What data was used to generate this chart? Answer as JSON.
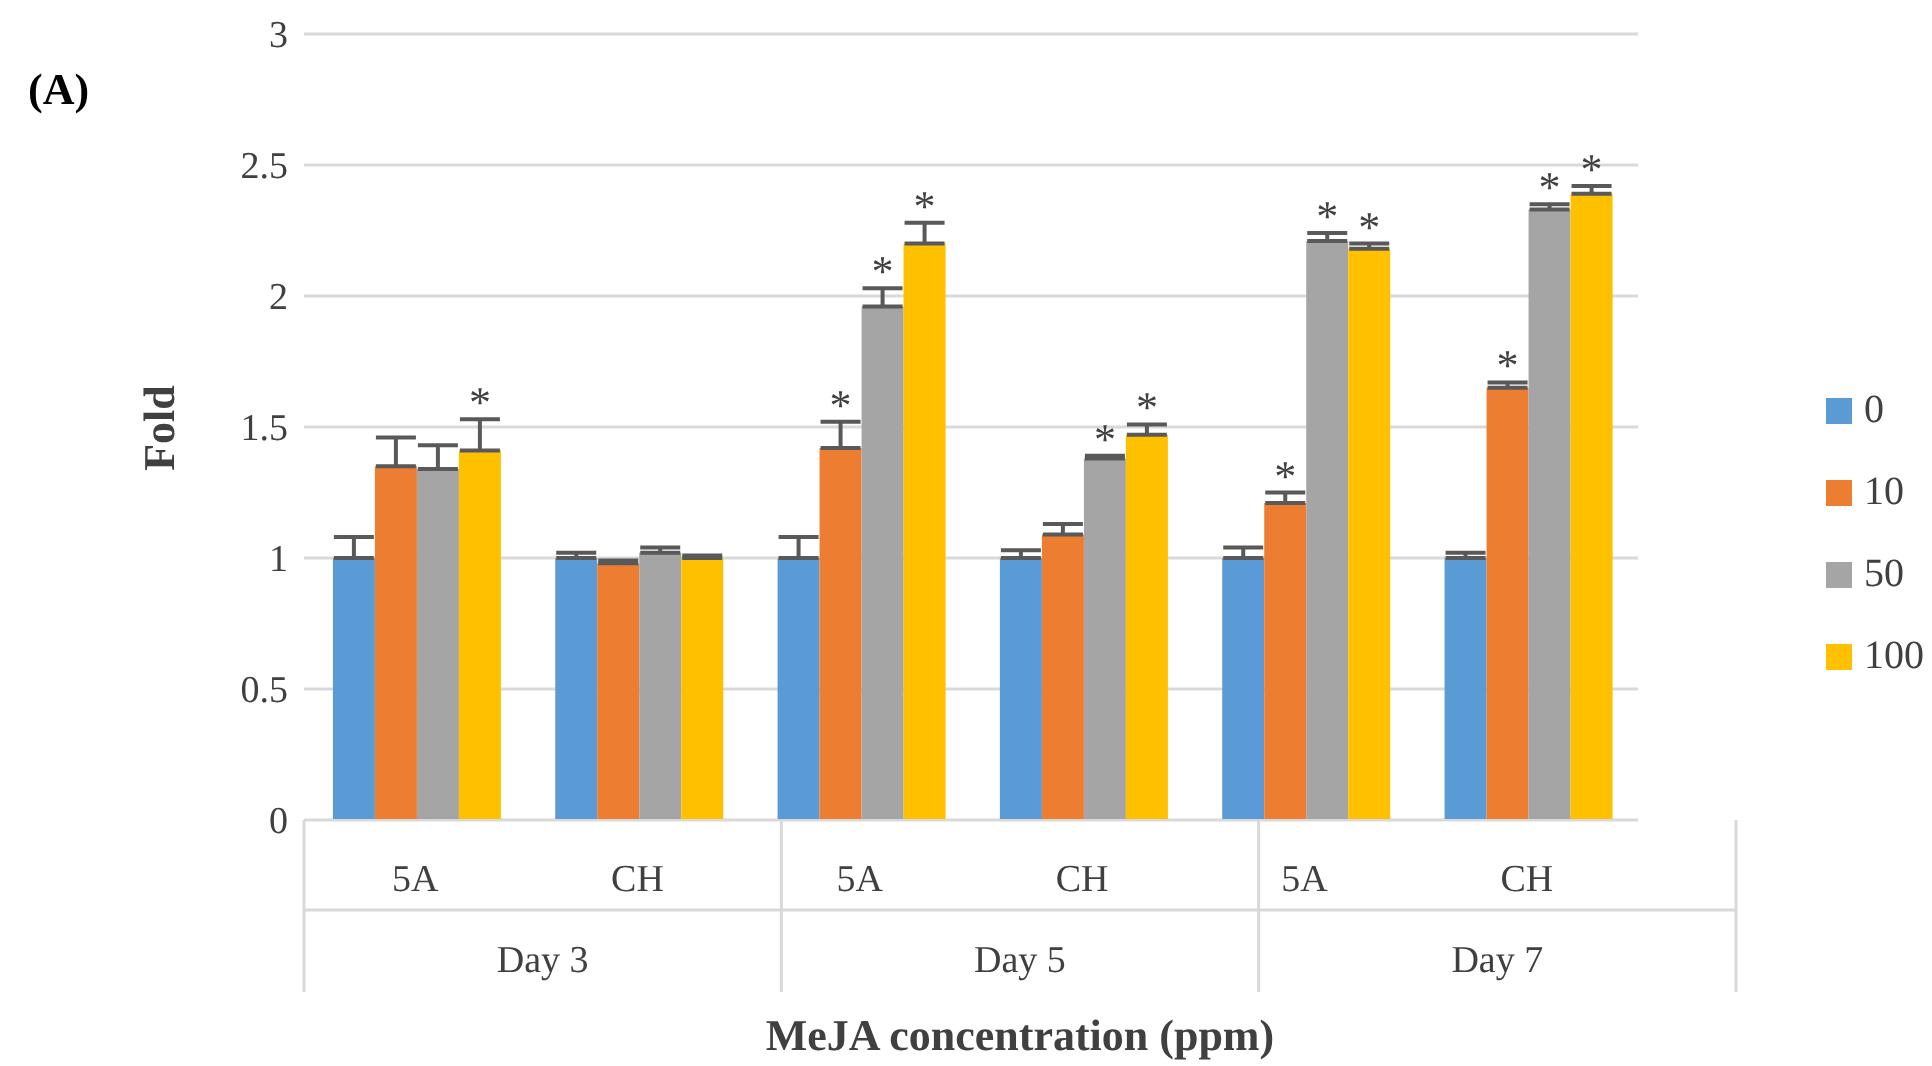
{
  "chart_data": {
    "type": "bar",
    "title": "(A)",
    "xlabel": "MeJA concentration (ppm)",
    "ylabel": "Fold",
    "categories": [
      "5A",
      "CH",
      "5A",
      "CH",
      "5A",
      "CH"
    ],
    "annotations": [
      "Day 3",
      "Day 5",
      "Day 7"
    ],
    "series": [
      {
        "name": "0",
        "color": "#5b9bd5",
        "values": [
          1.0,
          1.0,
          1.0,
          1.0,
          1.0,
          1.0
        ],
        "errors": [
          [
            1.0,
            1.08
          ],
          [
            1.0,
            1.02
          ],
          [
            1.0,
            1.08
          ],
          [
            1.0,
            1.03
          ],
          [
            1.0,
            1.04
          ],
          [
            1.0,
            1.02
          ]
        ],
        "value_labels": [
          null,
          null,
          null,
          null,
          null,
          null
        ]
      },
      {
        "name": "10",
        "color": "#ed7d31",
        "values": [
          1.35,
          0.98,
          1.42,
          1.09,
          1.21,
          1.65
        ],
        "errors": [
          [
            1.35,
            1.46
          ],
          [
            0.98,
            0.99
          ],
          [
            1.42,
            1.52
          ],
          [
            1.09,
            1.13
          ],
          [
            1.21,
            1.25
          ],
          [
            1.65,
            1.67
          ]
        ],
        "value_labels": [
          null,
          null,
          "*",
          null,
          "*",
          "*"
        ]
      },
      {
        "name": "50",
        "color": "#a5a5a5",
        "values": [
          1.34,
          1.02,
          1.96,
          1.38,
          2.21,
          2.33
        ],
        "errors": [
          [
            1.34,
            1.43
          ],
          [
            1.02,
            1.04
          ],
          [
            1.96,
            2.03
          ],
          [
            1.38,
            1.39
          ],
          [
            2.21,
            2.24
          ],
          [
            2.33,
            2.35
          ]
        ],
        "value_labels": [
          null,
          null,
          "*",
          "*",
          "*",
          "*"
        ]
      },
      {
        "name": "100",
        "color": "#ffc000",
        "values": [
          1.41,
          1.0,
          2.2,
          1.47,
          2.18,
          2.39
        ],
        "errors": [
          [
            1.41,
            1.53
          ],
          [
            1.0,
            1.01
          ],
          [
            2.2,
            2.28
          ],
          [
            1.47,
            1.51
          ],
          [
            2.18,
            2.2
          ],
          [
            2.39,
            2.42
          ]
        ],
        "value_labels": [
          "*",
          null,
          "*",
          "*",
          "*",
          "*"
        ]
      }
    ],
    "ylim": [
      0,
      3
    ],
    "yticks": [
      0,
      0.5,
      1,
      1.5,
      2,
      2.5,
      3
    ],
    "grid": "y",
    "legend": "right"
  }
}
